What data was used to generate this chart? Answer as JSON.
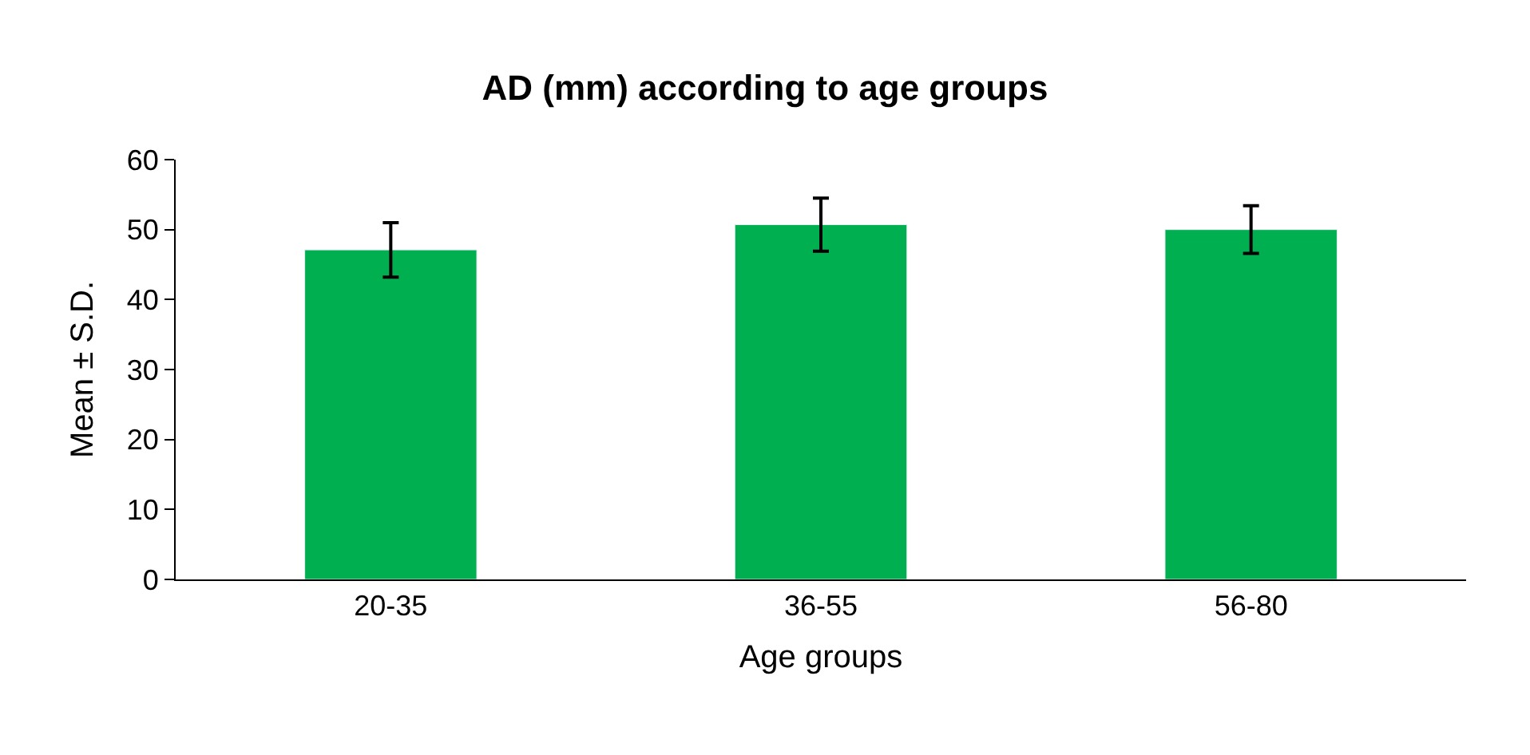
{
  "chart_data": {
    "type": "bar",
    "title": "AD (mm) according to age groups",
    "xlabel": "Age groups",
    "ylabel": "Mean ± S.D.",
    "categories": [
      "20-35",
      "36-55",
      "56-80"
    ],
    "values": [
      47.1,
      50.7,
      50.0
    ],
    "errors": [
      3.9,
      3.8,
      3.4
    ],
    "color": "#00b050",
    "ylim": [
      0,
      60
    ],
    "yticks": [
      0,
      10,
      20,
      30,
      40,
      50,
      60
    ],
    "legend": false
  }
}
